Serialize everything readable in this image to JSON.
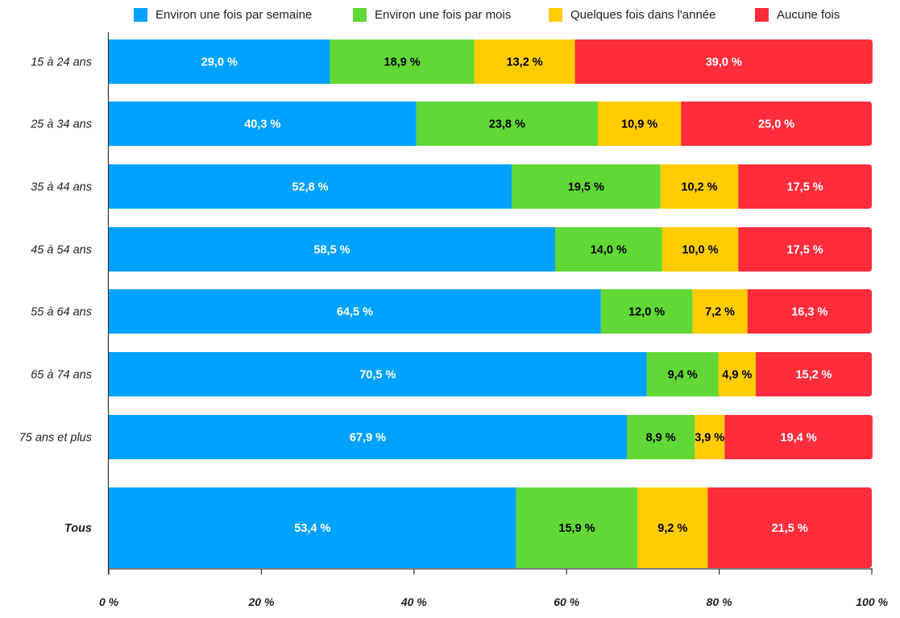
{
  "chart_data": {
    "type": "bar",
    "orientation": "horizontal",
    "stacked": true,
    "categories": [
      "15 à 24 ans",
      "25 à 34 ans",
      "35 à 44 ans",
      "45 à 54 ans",
      "55 à 64 ans",
      "65 à 74 ans",
      "75 ans et plus",
      "Tous"
    ],
    "series": [
      {
        "name": "Environ une fois par semaine",
        "color": "#00A2FF",
        "label_color": "#ffffff",
        "values": [
          29.0,
          40.3,
          52.8,
          58.5,
          64.5,
          70.5,
          67.9,
          53.4
        ],
        "labels": [
          "29,0 %",
          "40,3 %",
          "52,8 %",
          "58,5 %",
          "64,5 %",
          "70,5 %",
          "67,9 %",
          "53,4 %"
        ]
      },
      {
        "name": "Environ une fois par mois",
        "color": "#61D836",
        "label_color": "#000000",
        "values": [
          18.9,
          23.8,
          19.5,
          14.0,
          12.0,
          9.4,
          8.9,
          15.9
        ],
        "labels": [
          "18,9 %",
          "23,8 %",
          "19,5 %",
          "14,0 %",
          "12,0 %",
          "9,4 %",
          "8,9 %",
          "15,9 %"
        ]
      },
      {
        "name": "Quelques fois dans l'année",
        "color": "#FFCC00",
        "label_color": "#000000",
        "values": [
          13.2,
          10.9,
          10.2,
          10.0,
          7.2,
          4.9,
          3.9,
          9.2
        ],
        "labels": [
          "13,2 %",
          "10,9 %",
          "10,2 %",
          "10,0 %",
          "7,2 %",
          "4,9 %",
          "3,9 %",
          "9,2 %"
        ]
      },
      {
        "name": "Aucune fois",
        "color": "#FF2C3C",
        "label_color": "#ffffff",
        "values": [
          39.0,
          25.0,
          17.5,
          17.5,
          16.3,
          15.2,
          19.4,
          21.5
        ],
        "labels": [
          "39,0 %",
          "25,0 %",
          "17,5 %",
          "17,5 %",
          "16,3 %",
          "15,2 %",
          "19,4 %",
          "21,5 %"
        ]
      }
    ],
    "xlim": [
      0,
      100
    ],
    "xticks": [
      0,
      20,
      40,
      60,
      80,
      100
    ],
    "xtick_labels": [
      "0 %",
      "20 %",
      "40 %",
      "60 %",
      "80 %",
      "100 %"
    ],
    "legend_position": "top",
    "grid": false,
    "emphasized_category": "Tous"
  }
}
